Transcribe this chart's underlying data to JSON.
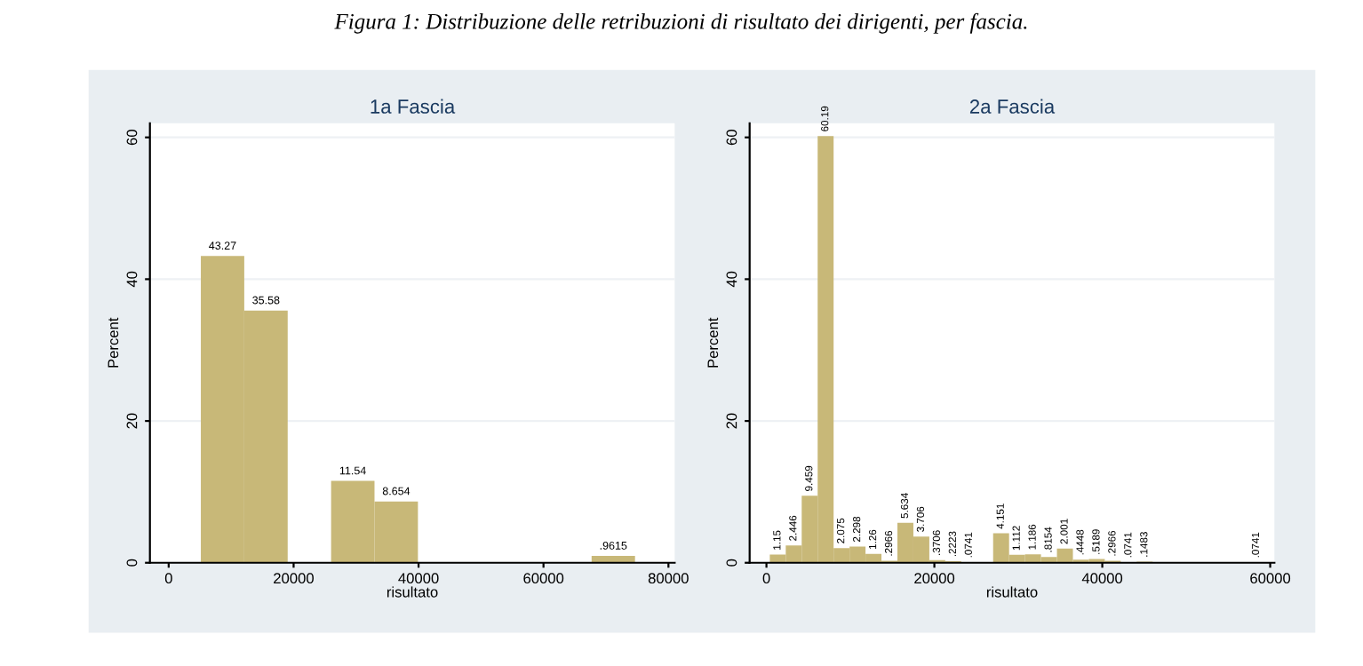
{
  "chart_data": [
    {
      "type": "histogram",
      "title": "1a Fascia",
      "xlabel": "risultato",
      "ylabel": "Percent",
      "annotations": [
        "Figura 1: Distribuzione delle retribuzioni di risultato dei dirigenti, per fascia."
      ],
      "color": "#c8b878",
      "bins": [
        5150,
        12100,
        19050,
        26000,
        32950,
        39900,
        46850,
        53800,
        60750,
        67700,
        74650
      ],
      "values": [
        43.27,
        35.58,
        0,
        11.54,
        8.654,
        0,
        0,
        0,
        0,
        0.9615
      ],
      "value_labels": [
        "43.27",
        "35.58",
        null,
        "11.54",
        "8.654",
        null,
        null,
        null,
        null,
        ".9615"
      ],
      "xlim": [
        -3000,
        81000
      ],
      "xticks": [
        0,
        20000,
        40000,
        60000,
        80000
      ],
      "ylim": [
        0,
        62
      ],
      "yticks": [
        0,
        20,
        40,
        60
      ],
      "grid": "y"
    },
    {
      "type": "histogram",
      "title": "2a Fascia",
      "xlabel": "risultato",
      "ylabel": "Percent",
      "color": "#c8b878",
      "bins": [
        400,
        2300,
        4200,
        6100,
        8000,
        9900,
        11800,
        13700,
        15600,
        17500,
        19400,
        21300,
        23200,
        25100,
        27000,
        28900,
        30800,
        32700,
        34600,
        36500,
        38400,
        40300,
        42200,
        44100,
        46000,
        47900,
        49800,
        51700,
        53600,
        55500,
        57400,
        59300
      ],
      "values": [
        1.15,
        2.446,
        9.459,
        60.19,
        2.075,
        2.298,
        1.26,
        0.2966,
        5.634,
        3.706,
        0.3706,
        0.2223,
        0.0741,
        0,
        4.151,
        1.112,
        1.186,
        0.8154,
        2.001,
        0.4448,
        0.5189,
        0.2966,
        0.0741,
        0.1483,
        0,
        0,
        0,
        0,
        0,
        0,
        0.0741
      ],
      "value_labels": [
        "1.15",
        "2.446",
        "9.459",
        "60.19",
        "2.075",
        "2.298",
        "1.26",
        ".2966",
        "5.634",
        "3.706",
        ".3706",
        ".2223",
        ".0741",
        null,
        "4.151",
        "1.112",
        "1.186",
        ".8154",
        "2.001",
        ".4448",
        ".5189",
        ".2966",
        ".0741",
        ".1483",
        null,
        null,
        null,
        null,
        null,
        null,
        ".0741"
      ],
      "xlim": [
        -2000,
        60500
      ],
      "xticks": [
        0,
        20000,
        40000,
        60000
      ],
      "ylim": [
        0,
        62
      ],
      "yticks": [
        0,
        20,
        40,
        60
      ],
      "grid": "y"
    }
  ]
}
